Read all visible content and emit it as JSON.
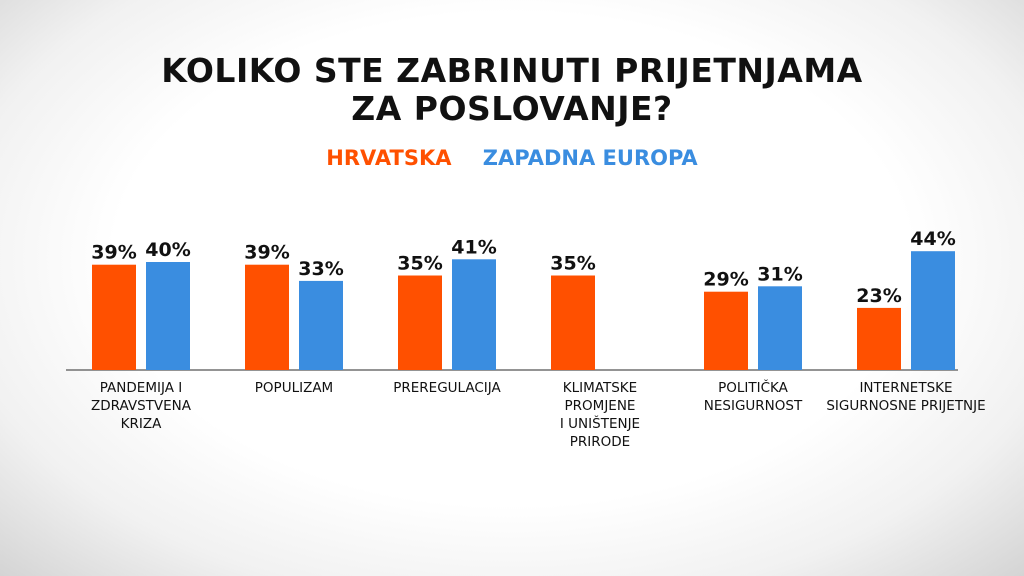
{
  "chart_data": {
    "type": "bar",
    "title": [
      "KOLIKO STE ZABRINUTI PRIJETNJAMA",
      "ZA POSLOVANJE?"
    ],
    "categories": [
      [
        "PANDEMIJA I",
        "ZDRAVSTVENA",
        "KRIZA"
      ],
      [
        "POPULIZAM"
      ],
      [
        "PREREGULACIJA"
      ],
      [
        "KLIMATSKE",
        "PROMJENE",
        "I UNIŠTENJE",
        "PRIRODE"
      ],
      [
        "POLITIČKA",
        "NESIGURNOST"
      ],
      [
        "INTERNETSKE",
        "SIGURNOSNE PRIJETNJE"
      ]
    ],
    "series": [
      {
        "name": "HRVATSKA",
        "color": "#ff5000",
        "values": [
          39,
          39,
          35,
          35,
          29,
          23
        ]
      },
      {
        "name": "ZAPADNA EUROPA",
        "color": "#3a8de0",
        "values": [
          40,
          33,
          41,
          null,
          31,
          44
        ]
      }
    ],
    "value_suffix": "%",
    "legend_position": "top-center",
    "ylim": [
      0,
      50
    ],
    "grid": false
  }
}
